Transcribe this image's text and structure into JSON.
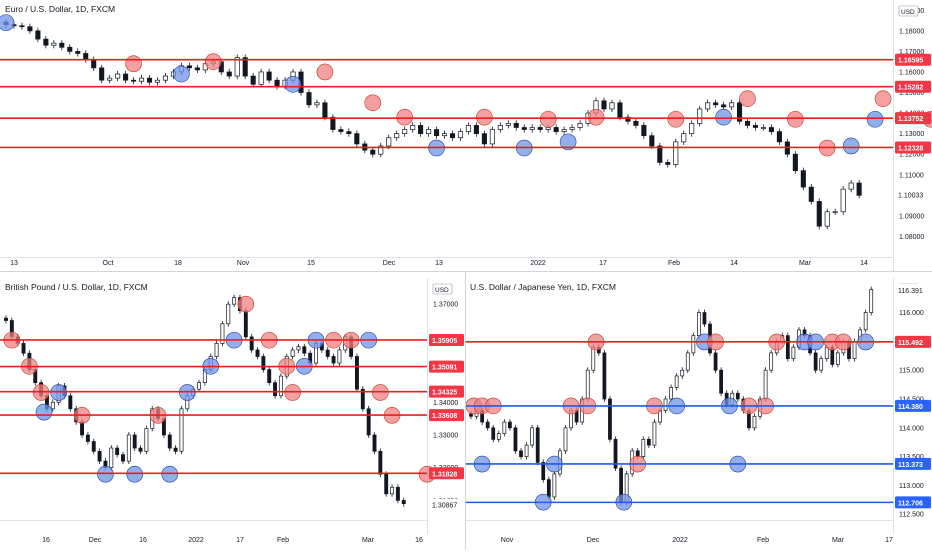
{
  "chart_data": [
    {
      "type": "candlestick",
      "title": "Euro / U.S. Dollar, 1D, FXCM",
      "currency": "USD",
      "ylim": [
        1.07,
        1.195
      ],
      "yticks": [
        "1.19000",
        "1.18000",
        "1.17000",
        "1.16000",
        "1.15000",
        "1.14000",
        "1.13000",
        "1.12000",
        "1.11000",
        "1.10000",
        "1.09000",
        "1.08000"
      ],
      "xticks": [
        "13",
        "Oct",
        "18",
        "Nov",
        "15",
        "Dec",
        "13",
        "2022",
        "17",
        "Feb",
        "14",
        "Mar",
        "14"
      ],
      "last_price": "1.10033",
      "levels": [
        {
          "value": 1.16595,
          "label": "1.16595"
        },
        {
          "value": 1.15282,
          "label": "1.15282"
        },
        {
          "value": 1.13752,
          "label": "1.13752"
        },
        {
          "value": 1.12328,
          "label": "1.12328"
        }
      ],
      "closes": [
        1.183,
        1.1825,
        1.182,
        1.18,
        1.176,
        1.173,
        1.174,
        1.172,
        1.17,
        1.169,
        1.166,
        1.162,
        1.156,
        1.157,
        1.159,
        1.156,
        1.1555,
        1.157,
        1.155,
        1.156,
        1.158,
        1.16,
        1.163,
        1.162,
        1.161,
        1.164,
        1.165,
        1.16,
        1.158,
        1.167,
        1.158,
        1.154,
        1.16,
        1.156,
        1.153,
        1.156,
        1.16,
        1.15,
        1.144,
        1.145,
        1.138,
        1.132,
        1.131,
        1.13,
        1.125,
        1.122,
        1.12,
        1.124,
        1.128,
        1.13,
        1.132,
        1.134,
        1.13,
        1.132,
        1.129,
        1.13,
        1.128,
        1.131,
        1.134,
        1.13,
        1.125,
        1.132,
        1.134,
        1.135,
        1.133,
        1.132,
        1.133,
        1.132,
        1.133,
        1.131,
        1.132,
        1.133,
        1.135,
        1.14,
        1.146,
        1.142,
        1.145,
        1.138,
        1.136,
        1.134,
        1.129,
        1.124,
        1.116,
        1.115,
        1.126,
        1.13,
        1.135,
        1.142,
        1.145,
        1.144,
        1.143,
        1.145,
        1.136,
        1.134,
        1.133,
        1.133,
        1.131,
        1.126,
        1.12,
        1.112,
        1.104,
        1.097,
        1.085,
        1.092,
        1.092,
        1.103,
        1.106,
        1.1
      ],
      "highlight_circles": [
        {
          "x": 0.0,
          "y": 1.184,
          "color": "blue"
        },
        {
          "x": 16.0,
          "y": 1.164,
          "color": "red"
        },
        {
          "x": 22.0,
          "y": 1.159,
          "color": "blue"
        },
        {
          "x": 26.0,
          "y": 1.165,
          "color": "red"
        },
        {
          "x": 36.0,
          "y": 1.154,
          "color": "blue"
        },
        {
          "x": 40.0,
          "y": 1.16,
          "color": "red"
        },
        {
          "x": 46.0,
          "y": 1.145,
          "color": "red"
        },
        {
          "x": 50.0,
          "y": 1.138,
          "color": "red"
        },
        {
          "x": 54.0,
          "y": 1.123,
          "color": "blue"
        },
        {
          "x": 60.0,
          "y": 1.138,
          "color": "red"
        },
        {
          "x": 65.0,
          "y": 1.123,
          "color": "blue"
        },
        {
          "x": 68.0,
          "y": 1.137,
          "color": "red"
        },
        {
          "x": 70.5,
          "y": 1.126,
          "color": "blue"
        },
        {
          "x": 74.0,
          "y": 1.138,
          "color": "red"
        },
        {
          "x": 84.0,
          "y": 1.137,
          "color": "red"
        },
        {
          "x": 90.0,
          "y": 1.138,
          "color": "blue"
        },
        {
          "x": 93.0,
          "y": 1.147,
          "color": "red"
        },
        {
          "x": 99.0,
          "y": 1.137,
          "color": "red"
        },
        {
          "x": 103.0,
          "y": 1.123,
          "color": "red"
        },
        {
          "x": 106.0,
          "y": 1.124,
          "color": "blue"
        },
        {
          "x": 109.0,
          "y": 1.137,
          "color": "blue"
        },
        {
          "x": 110.0,
          "y": 1.147,
          "color": "red"
        },
        {
          "x": 116.0,
          "y": 1.137,
          "color": "red"
        },
        {
          "x": 124.0,
          "y": 1.123,
          "color": "red"
        }
      ]
    },
    {
      "type": "candlestick",
      "title": "British Pound / U.S. Dollar, 1D, FXCM",
      "currency": "USD",
      "ylim": [
        1.304,
        1.378
      ],
      "yticks": [
        "1.37000",
        "1.36000",
        "1.35000",
        "1.34000",
        "1.33000",
        "1.32000",
        "1.31000"
      ],
      "xticks": [
        "16",
        "Dec",
        "16",
        "2022",
        "17",
        "Feb",
        "Mar",
        "16"
      ],
      "last_price": "1.30867",
      "levels": [
        {
          "value": 1.35905,
          "label": "1.35905"
        },
        {
          "value": 1.35091,
          "label": "1.35091"
        },
        {
          "value": 1.34325,
          "label": "1.34325"
        },
        {
          "value": 1.33608,
          "label": "1.33608"
        },
        {
          "value": 1.31828,
          "label": "1.31828"
        }
      ],
      "closes": [
        1.365,
        1.36,
        1.358,
        1.355,
        1.35,
        1.346,
        1.342,
        1.338,
        1.34,
        1.345,
        1.342,
        1.338,
        1.334,
        1.33,
        1.328,
        1.325,
        1.322,
        1.32,
        1.326,
        1.324,
        1.322,
        1.33,
        1.326,
        1.325,
        1.332,
        1.338,
        1.335,
        1.33,
        1.326,
        1.325,
        1.338,
        1.342,
        1.344,
        1.346,
        1.35,
        1.354,
        1.358,
        1.364,
        1.37,
        1.372,
        1.368,
        1.36,
        1.356,
        1.354,
        1.35,
        1.346,
        1.342,
        1.348,
        1.354,
        1.356,
        1.357,
        1.355,
        1.352,
        1.358,
        1.356,
        1.354,
        1.352,
        1.356,
        1.36,
        1.354,
        1.344,
        1.338,
        1.33,
        1.325,
        1.318,
        1.312,
        1.314,
        1.31,
        1.309
      ],
      "highlight_circles": [
        {
          "x": 1.0,
          "y": 1.359,
          "color": "red"
        },
        {
          "x": 4.0,
          "y": 1.351,
          "color": "red"
        },
        {
          "x": 6.0,
          "y": 1.343,
          "color": "red"
        },
        {
          "x": 6.5,
          "y": 1.337,
          "color": "blue"
        },
        {
          "x": 9.0,
          "y": 1.343,
          "color": "blue"
        },
        {
          "x": 13.0,
          "y": 1.336,
          "color": "red"
        },
        {
          "x": 17.0,
          "y": 1.318,
          "color": "blue"
        },
        {
          "x": 22.0,
          "y": 1.318,
          "color": "blue"
        },
        {
          "x": 26.0,
          "y": 1.336,
          "color": "red"
        },
        {
          "x": 28.0,
          "y": 1.318,
          "color": "blue"
        },
        {
          "x": 31.0,
          "y": 1.343,
          "color": "blue"
        },
        {
          "x": 35.0,
          "y": 1.351,
          "color": "blue"
        },
        {
          "x": 39.0,
          "y": 1.359,
          "color": "blue"
        },
        {
          "x": 41.0,
          "y": 1.37,
          "color": "red"
        },
        {
          "x": 45.0,
          "y": 1.359,
          "color": "red"
        },
        {
          "x": 48.0,
          "y": 1.351,
          "color": "red"
        },
        {
          "x": 49.0,
          "y": 1.343,
          "color": "red"
        },
        {
          "x": 51.0,
          "y": 1.351,
          "color": "blue"
        },
        {
          "x": 53.0,
          "y": 1.359,
          "color": "blue"
        },
        {
          "x": 56.0,
          "y": 1.359,
          "color": "red"
        },
        {
          "x": 59.0,
          "y": 1.359,
          "color": "red"
        },
        {
          "x": 62.0,
          "y": 1.359,
          "color": "blue"
        },
        {
          "x": 64.0,
          "y": 1.343,
          "color": "red"
        },
        {
          "x": 66.0,
          "y": 1.336,
          "color": "red"
        },
        {
          "x": 72.0,
          "y": 1.318,
          "color": "red"
        }
      ]
    },
    {
      "type": "candlestick",
      "title": "U.S. Dollar / Japanese Yen, 1D, FXCM",
      "currency": "JPY",
      "ylim": [
        112.4,
        116.6
      ],
      "yticks": [
        "116.000",
        "115.500",
        "115.000",
        "114.500",
        "114.000",
        "113.500",
        "113.000",
        "112.500"
      ],
      "xticks": [
        "Nov",
        "Dec",
        "2022",
        "Feb",
        "Mar",
        "17"
      ],
      "last_price": "116.391",
      "levels": [
        {
          "value": 115.492,
          "label": "115.492",
          "color": "red"
        },
        {
          "value": 114.38,
          "label": "114.380",
          "color": "blue"
        },
        {
          "value": 113.373,
          "label": "113.373",
          "color": "blue"
        },
        {
          "value": 112.706,
          "label": "112.706",
          "color": "blue"
        }
      ],
      "closes": [
        114.2,
        114.3,
        114.1,
        114.0,
        113.8,
        113.9,
        114.1,
        114.0,
        113.6,
        113.5,
        113.7,
        114.0,
        113.4,
        113.1,
        112.8,
        113.2,
        113.6,
        114.0,
        114.3,
        114.1,
        114.5,
        115.0,
        115.4,
        115.3,
        114.5,
        113.8,
        113.3,
        112.7,
        113.2,
        113.6,
        113.5,
        113.8,
        113.7,
        114.1,
        114.3,
        114.5,
        114.7,
        114.9,
        115.0,
        115.3,
        115.6,
        116.0,
        115.8,
        115.3,
        115.0,
        114.6,
        114.4,
        114.6,
        114.5,
        114.3,
        114.0,
        114.2,
        114.5,
        115.0,
        115.3,
        115.5,
        115.6,
        115.2,
        115.4,
        115.7,
        115.6,
        115.3,
        115.0,
        115.2,
        115.4,
        115.1,
        115.3,
        115.5,
        115.2,
        115.5,
        115.7,
        116.0,
        116.4
      ],
      "highlight_circles": [
        {
          "x": 0.5,
          "y": 114.38,
          "color": "red"
        },
        {
          "x": 2.0,
          "y": 114.38,
          "color": "red"
        },
        {
          "x": 4.0,
          "y": 114.38,
          "color": "red"
        },
        {
          "x": 2.0,
          "y": 113.37,
          "color": "blue"
        },
        {
          "x": 13.0,
          "y": 112.71,
          "color": "blue"
        },
        {
          "x": 15.0,
          "y": 113.37,
          "color": "blue"
        },
        {
          "x": 18.0,
          "y": 114.38,
          "color": "red"
        },
        {
          "x": 21.0,
          "y": 114.38,
          "color": "red"
        },
        {
          "x": 22.5,
          "y": 115.49,
          "color": "red"
        },
        {
          "x": 27.5,
          "y": 112.71,
          "color": "blue"
        },
        {
          "x": 30.0,
          "y": 113.37,
          "color": "red"
        },
        {
          "x": 33.0,
          "y": 114.38,
          "color": "red"
        },
        {
          "x": 37.0,
          "y": 114.38,
          "color": "blue"
        },
        {
          "x": 42.0,
          "y": 115.49,
          "color": "blue"
        },
        {
          "x": 44.0,
          "y": 115.49,
          "color": "red"
        },
        {
          "x": 46.5,
          "y": 114.38,
          "color": "blue"
        },
        {
          "x": 48.0,
          "y": 113.37,
          "color": "blue"
        },
        {
          "x": 50.0,
          "y": 114.38,
          "color": "red"
        },
        {
          "x": 53.0,
          "y": 114.38,
          "color": "red"
        },
        {
          "x": 55.0,
          "y": 115.49,
          "color": "red"
        },
        {
          "x": 60.0,
          "y": 115.49,
          "color": "blue"
        },
        {
          "x": 62.0,
          "y": 115.49,
          "color": "blue"
        },
        {
          "x": 65.0,
          "y": 115.49,
          "color": "red"
        },
        {
          "x": 67.0,
          "y": 115.49,
          "color": "red"
        },
        {
          "x": 71.0,
          "y": 115.49,
          "color": "blue"
        }
      ]
    }
  ],
  "colors": {
    "level_red": "#ee1c1c",
    "level_blue": "#1e5ce6",
    "label_red": "#f23645",
    "label_blue": "#2962ff",
    "circle_red": "#f08080",
    "circle_blue": "#6f93e8",
    "candle": "#131722"
  }
}
